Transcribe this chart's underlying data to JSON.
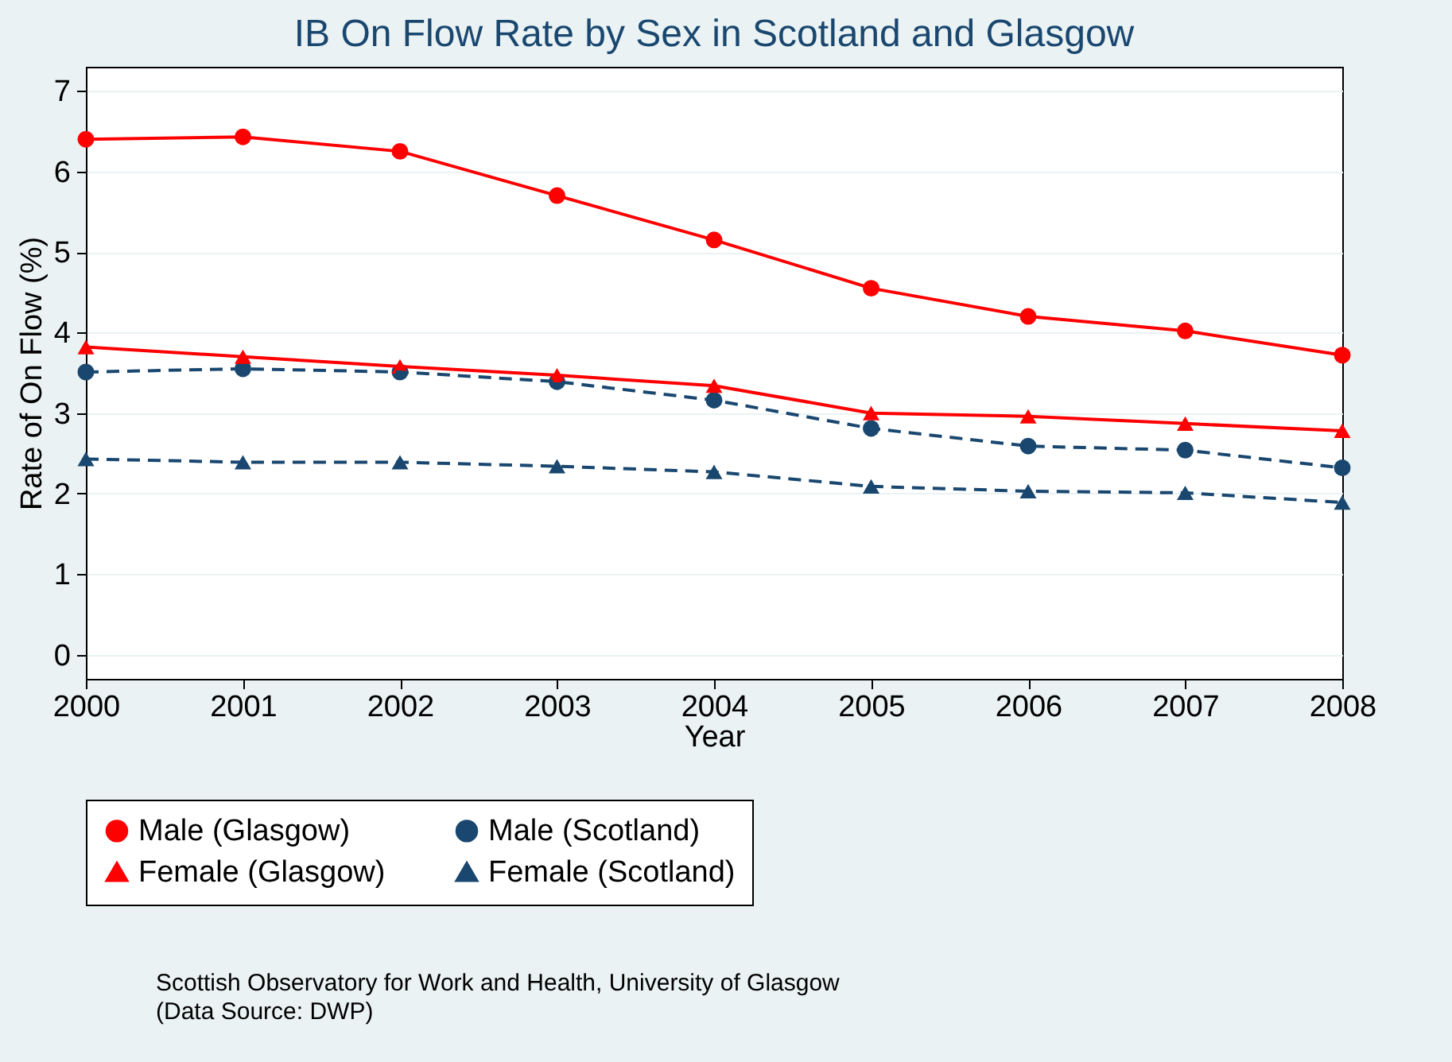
{
  "chart_data": {
    "type": "line",
    "title": "IB On Flow Rate by Sex in Scotland and Glasgow",
    "xlabel": "Year",
    "ylabel": "Rate of On Flow (%)",
    "x": [
      2000,
      2001,
      2002,
      2003,
      2004,
      2005,
      2006,
      2007,
      2008
    ],
    "xlim": [
      2000,
      2008
    ],
    "xticks": [
      2000,
      2001,
      2002,
      2003,
      2004,
      2005,
      2006,
      2007,
      2008
    ],
    "ylim": [
      -0.3,
      7.3
    ],
    "yticks": [
      0,
      1,
      2,
      3,
      4,
      5,
      6,
      7
    ],
    "grid": "y",
    "legend": "bottom",
    "series": [
      {
        "name": "Male (Glasgow)",
        "color": "#ff0000",
        "marker": "circle",
        "line_style": "solid",
        "values": [
          6.4,
          6.43,
          6.25,
          5.7,
          5.15,
          4.55,
          4.2,
          4.02,
          3.72
        ]
      },
      {
        "name": "Male (Scotland)",
        "color": "#1a476f",
        "marker": "circle",
        "line_style": "dashed",
        "values": [
          3.51,
          3.55,
          3.51,
          3.39,
          3.16,
          2.81,
          2.59,
          2.54,
          2.32
        ]
      },
      {
        "name": "Female (Glasgow)",
        "color": "#ff0000",
        "marker": "triangle",
        "line_style": "solid",
        "values": [
          3.82,
          3.7,
          3.58,
          3.47,
          3.34,
          3.0,
          2.96,
          2.87,
          2.78
        ]
      },
      {
        "name": "Female (Scotland)",
        "color": "#1a476f",
        "marker": "triangle",
        "line_style": "dashed",
        "values": [
          2.43,
          2.39,
          2.39,
          2.34,
          2.27,
          2.09,
          2.03,
          2.01,
          1.89
        ]
      }
    ],
    "annotations": [
      "Scottish Observatory for Work and Health, University of Glasgow",
      "(Data Source: DWP)"
    ]
  }
}
